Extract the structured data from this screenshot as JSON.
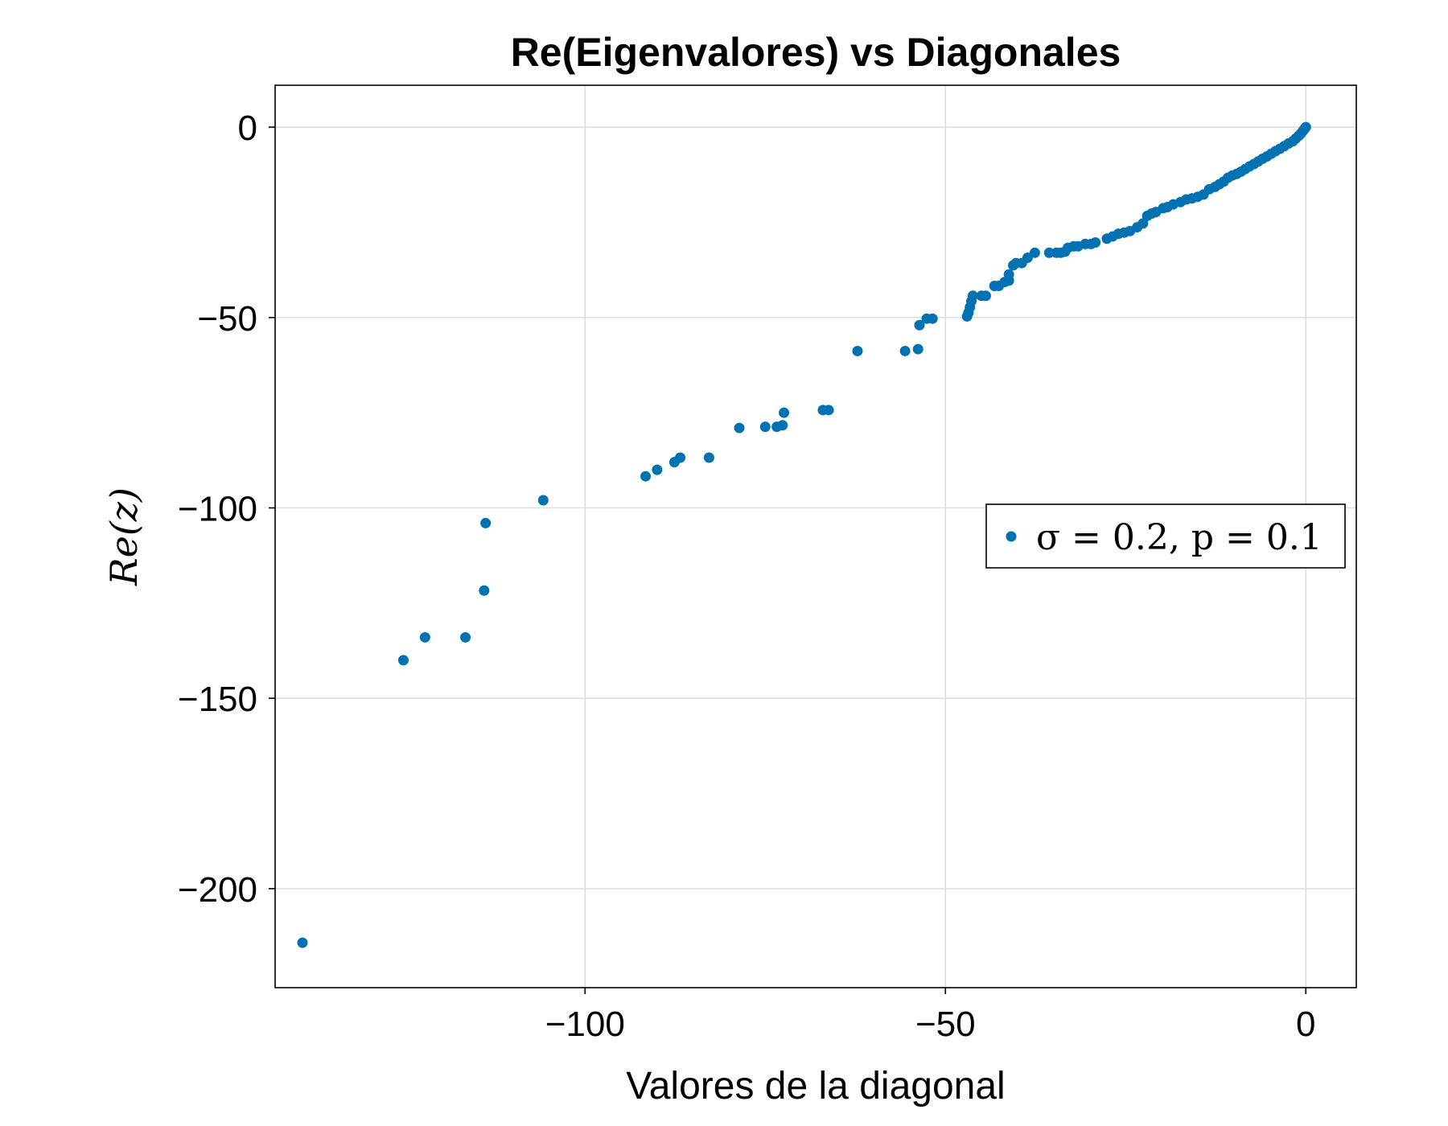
{
  "chart_data": {
    "type": "scatter",
    "title": "Re(Eigenvalores) vs Diagonales",
    "xlabel": "Valores de la diagonal",
    "ylabel": "Re(z)",
    "xlim": [
      -143,
      7
    ],
    "ylim": [
      -226,
      11
    ],
    "xticks": [
      -100,
      -50,
      0
    ],
    "xtick_labels": [
      "−100",
      "−50",
      "0"
    ],
    "yticks": [
      0,
      -50,
      -100,
      -150,
      -200
    ],
    "ytick_labels": [
      "0",
      "−50",
      "−100",
      "−150",
      "−200"
    ],
    "grid": true,
    "legend_position": "right",
    "color": "#0072b2",
    "series": [
      {
        "name": "σ = 0.2, p = 0.1",
        "points": [
          [
            -139.2,
            -214.2
          ],
          [
            -125.2,
            -140.0
          ],
          [
            -122.2,
            -134.0
          ],
          [
            -116.6,
            -134.0
          ],
          [
            -113.8,
            -104.0
          ],
          [
            -114.0,
            -121.7
          ],
          [
            -105.8,
            -98.0
          ],
          [
            -91.6,
            -91.7
          ],
          [
            -90.0,
            -90.0
          ],
          [
            -87.6,
            -88.0
          ],
          [
            -86.8,
            -86.8
          ],
          [
            -82.8,
            -86.8
          ],
          [
            -78.6,
            -79.0
          ],
          [
            -75.0,
            -78.7
          ],
          [
            -73.4,
            -78.7
          ],
          [
            -72.6,
            -78.3
          ],
          [
            -72.4,
            -75.0
          ],
          [
            -67.0,
            -74.3
          ],
          [
            -66.2,
            -74.3
          ],
          [
            -62.2,
            -58.8
          ],
          [
            -55.6,
            -58.8
          ],
          [
            -53.8,
            -58.3
          ],
          [
            -53.6,
            -52.0
          ],
          [
            -52.6,
            -50.3
          ],
          [
            -51.8,
            -50.3
          ],
          [
            -47.0,
            -49.7
          ],
          [
            -46.8,
            -48.7
          ],
          [
            -46.6,
            -47.3
          ],
          [
            -46.4,
            -45.7
          ],
          [
            -46.2,
            -44.3
          ],
          [
            -45.0,
            -44.3
          ],
          [
            -44.4,
            -44.3
          ],
          [
            -43.2,
            -41.7
          ],
          [
            -42.6,
            -41.7
          ],
          [
            -41.8,
            -40.7
          ],
          [
            -41.2,
            -40.3
          ],
          [
            -41.2,
            -38.7
          ],
          [
            -40.6,
            -36.3
          ],
          [
            -40.2,
            -35.7
          ],
          [
            -39.4,
            -35.7
          ],
          [
            -38.6,
            -34.3
          ],
          [
            -37.6,
            -33.0
          ],
          [
            -35.6,
            -33.0
          ],
          [
            -34.6,
            -33.0
          ],
          [
            -34.0,
            -33.0
          ],
          [
            -33.4,
            -32.7
          ],
          [
            -33.0,
            -31.7
          ],
          [
            -32.2,
            -31.3
          ],
          [
            -31.6,
            -31.3
          ],
          [
            -30.6,
            -30.7
          ],
          [
            -29.8,
            -30.7
          ],
          [
            -29.2,
            -30.3
          ],
          [
            -27.6,
            -29.3
          ],
          [
            -26.8,
            -28.7
          ],
          [
            -26.0,
            -28.0
          ],
          [
            -25.2,
            -27.7
          ],
          [
            -24.4,
            -27.3
          ],
          [
            -23.4,
            -26.3
          ],
          [
            -22.6,
            -25.3
          ],
          [
            -22.0,
            -23.3
          ],
          [
            -21.4,
            -22.7
          ],
          [
            -20.8,
            -22.3
          ],
          [
            -19.8,
            -21.3
          ],
          [
            -19.2,
            -21.0
          ],
          [
            -18.4,
            -20.3
          ],
          [
            -17.4,
            -19.7
          ],
          [
            -16.6,
            -19.0
          ],
          [
            -15.8,
            -18.7
          ],
          [
            -15.0,
            -18.3
          ],
          [
            -14.2,
            -17.7
          ],
          [
            -13.4,
            -16.3
          ],
          [
            -12.6,
            -15.7
          ],
          [
            -12.0,
            -15.0
          ],
          [
            -11.4,
            -14.3
          ],
          [
            -10.8,
            -13.3
          ],
          [
            -10.2,
            -12.7
          ],
          [
            -9.6,
            -12.3
          ],
          [
            -9.0,
            -11.7
          ],
          [
            -8.4,
            -11.0
          ],
          [
            -7.8,
            -10.3
          ],
          [
            -7.2,
            -9.7
          ],
          [
            -6.6,
            -9.0
          ],
          [
            -6.0,
            -8.3
          ],
          [
            -5.4,
            -7.7
          ],
          [
            -4.8,
            -7.0
          ],
          [
            -4.2,
            -6.3
          ],
          [
            -3.6,
            -5.7
          ],
          [
            -3.0,
            -5.0
          ],
          [
            -2.4,
            -4.3
          ],
          [
            -1.8,
            -3.7
          ],
          [
            -1.4,
            -3.0
          ],
          [
            -1.0,
            -2.3
          ],
          [
            -0.7,
            -1.7
          ],
          [
            -0.4,
            -1.0
          ],
          [
            -0.2,
            -0.5
          ],
          [
            0.0,
            0.0
          ]
        ]
      }
    ]
  }
}
